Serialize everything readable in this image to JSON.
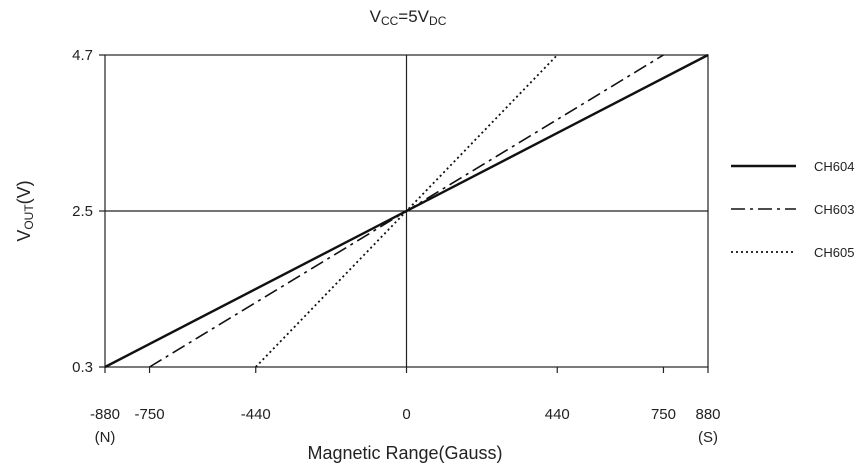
{
  "chart_data": {
    "type": "line",
    "title": {
      "main": "V",
      "sub1": "CC",
      "mid": "=5V",
      "sub2": "DC"
    },
    "xlabel": "Magnetic Range(Gauss)",
    "ylabel": {
      "main": "V",
      "sub": "OUT",
      "unit": "(V)"
    },
    "xlim": [
      -880,
      880
    ],
    "ylim": [
      0.3,
      4.7
    ],
    "x_ticks": [
      {
        "value": -880,
        "label": "-880",
        "sublabel": "(N)"
      },
      {
        "value": -750,
        "label": "-750",
        "sublabel": ""
      },
      {
        "value": -440,
        "label": "-440",
        "sublabel": ""
      },
      {
        "value": 0,
        "label": "0",
        "sublabel": ""
      },
      {
        "value": 440,
        "label": "440",
        "sublabel": ""
      },
      {
        "value": 750,
        "label": "750",
        "sublabel": ""
      },
      {
        "value": 880,
        "label": "880",
        "sublabel": "(S)"
      }
    ],
    "y_ticks": [
      {
        "value": 0.3,
        "label": "0.3"
      },
      {
        "value": 2.5,
        "label": "2.5"
      },
      {
        "value": 4.7,
        "label": "4.7"
      }
    ],
    "reference_lines": [
      {
        "axis": "y",
        "value": 4.7,
        "style": "dashed"
      },
      {
        "axis": "y",
        "value": 0.3,
        "style": "dashed"
      },
      {
        "axis": "y",
        "value": 2.5,
        "style": "solid"
      },
      {
        "axis": "x",
        "value": 0,
        "style": "solid"
      }
    ],
    "series": [
      {
        "name": "CH604",
        "style": "solid",
        "points": [
          [
            -880,
            0.3
          ],
          [
            880,
            4.7
          ]
        ]
      },
      {
        "name": "CH603",
        "style": "dashdot",
        "points": [
          [
            -750,
            0.3
          ],
          [
            750,
            4.7
          ]
        ]
      },
      {
        "name": "CH605",
        "style": "dotted",
        "points": [
          [
            -440,
            0.3
          ],
          [
            440,
            4.7
          ]
        ]
      }
    ],
    "legend_position": "right",
    "grid": false
  }
}
